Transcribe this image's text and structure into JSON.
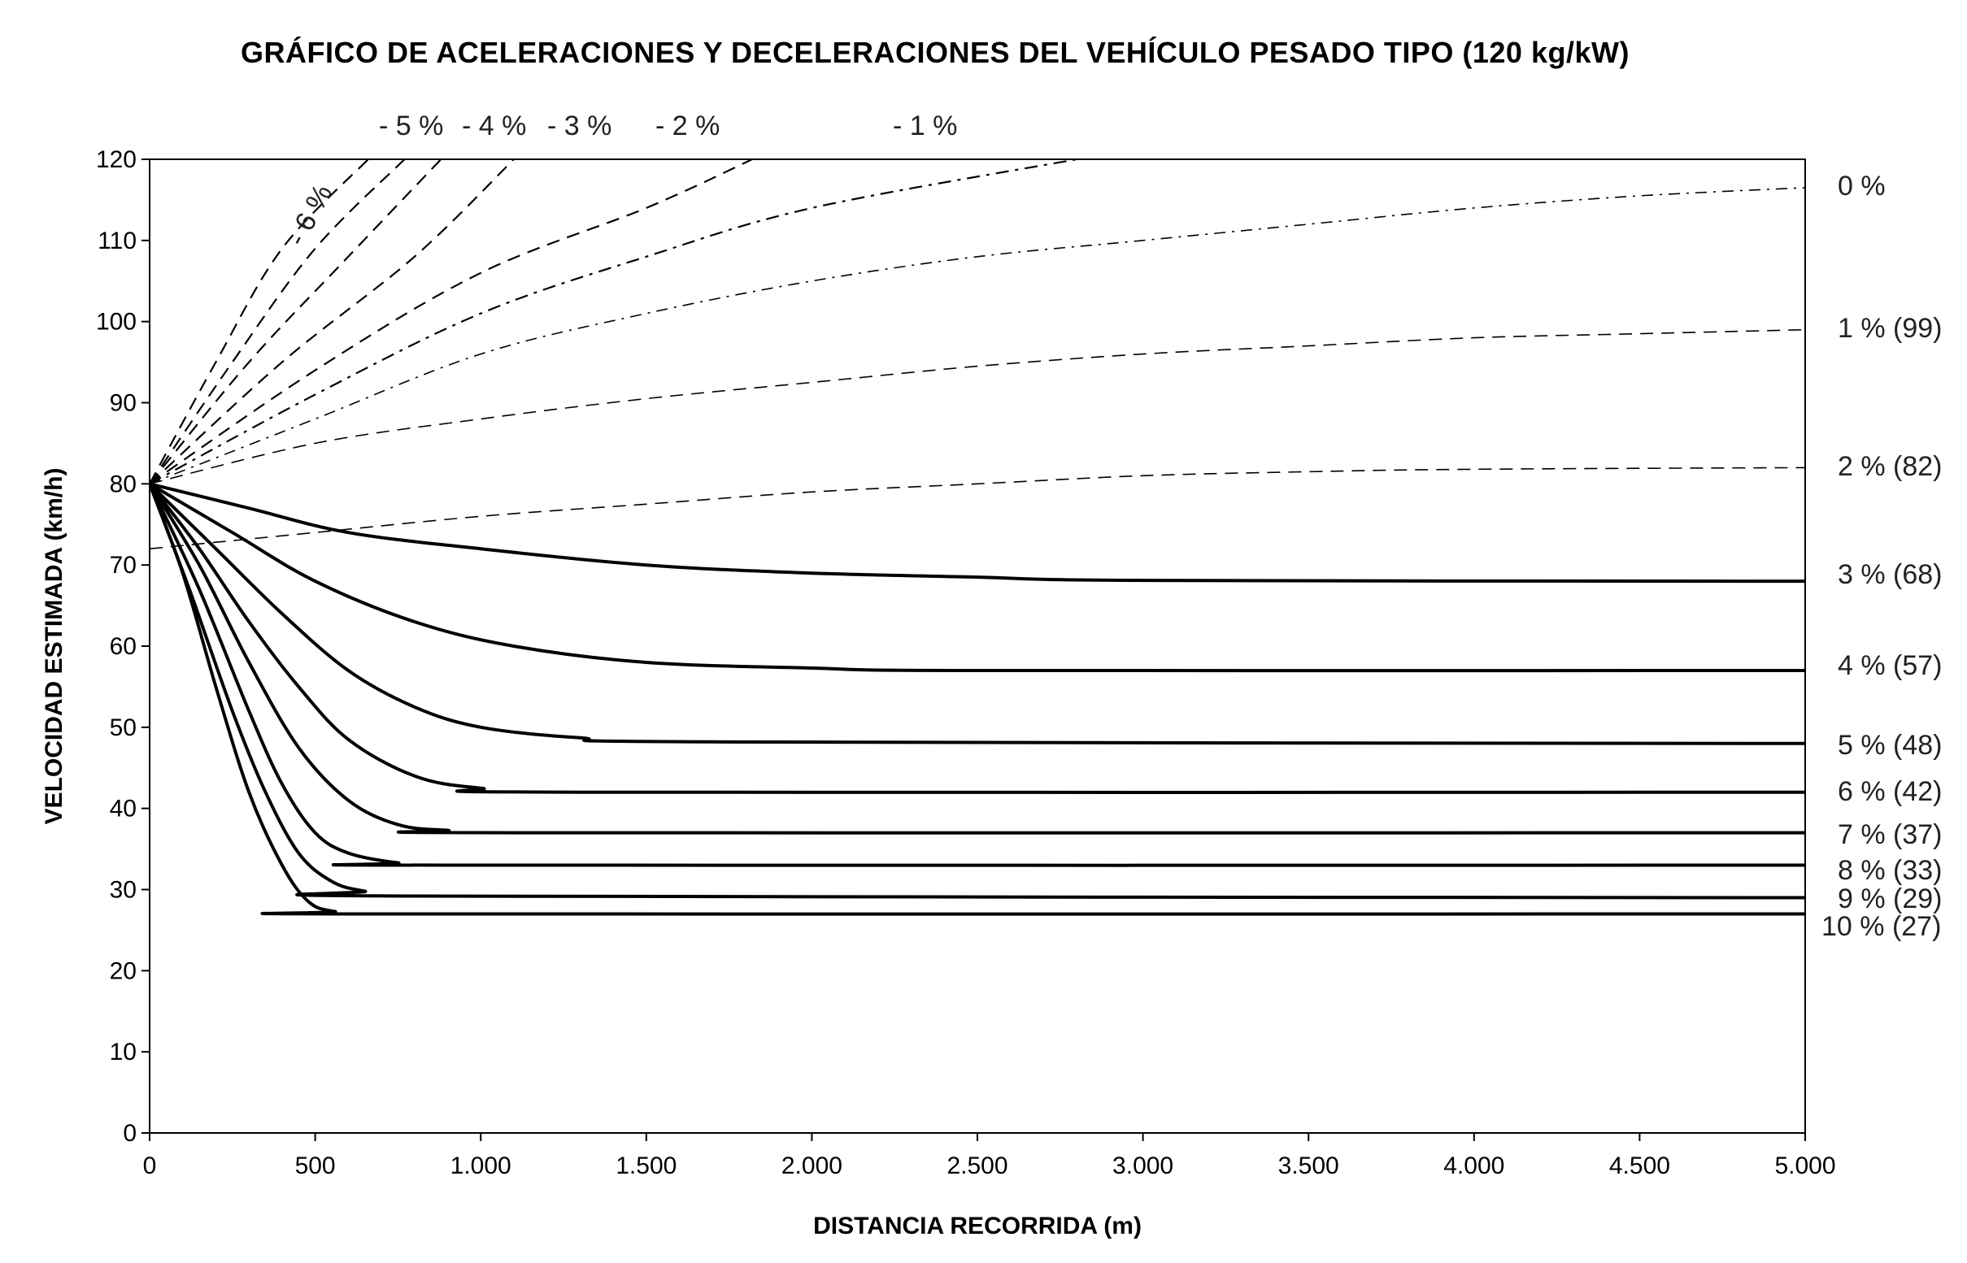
{
  "chart_data": {
    "type": "line",
    "title": "GRÁFICO DE ACELERACIONES Y DECELERACIONES DEL VEHÍCULO PESADO TIPO (120 kg/kW)",
    "xlabel": "DISTANCIA RECORRIDA (m)",
    "ylabel": "VELOCIDAD ESTIMADA (km/h)",
    "xlim": [
      0,
      5000
    ],
    "ylim": [
      0,
      120
    ],
    "x_ticks": [
      {
        "value": 0,
        "label": "0"
      },
      {
        "value": 500,
        "label": "500"
      },
      {
        "value": 1000,
        "label": "1.000"
      },
      {
        "value": 1500,
        "label": "1.500"
      },
      {
        "value": 2000,
        "label": "2.000"
      },
      {
        "value": 2500,
        "label": "2.500"
      },
      {
        "value": 3000,
        "label": "3.000"
      },
      {
        "value": 3500,
        "label": "3.500"
      },
      {
        "value": 4000,
        "label": "4.000"
      },
      {
        "value": 4500,
        "label": "4.500"
      },
      {
        "value": 5000,
        "label": "5.000"
      }
    ],
    "y_ticks": [
      {
        "value": 0,
        "label": "0"
      },
      {
        "value": 10,
        "label": "10"
      },
      {
        "value": 20,
        "label": "20"
      },
      {
        "value": 30,
        "label": "30"
      },
      {
        "value": 40,
        "label": "40"
      },
      {
        "value": 50,
        "label": "50"
      },
      {
        "value": 60,
        "label": "60"
      },
      {
        "value": 70,
        "label": "70"
      },
      {
        "value": 80,
        "label": "80"
      },
      {
        "value": 90,
        "label": "90"
      },
      {
        "value": 100,
        "label": "100"
      },
      {
        "value": 110,
        "label": "110"
      },
      {
        "value": 120,
        "label": "120"
      }
    ],
    "grid": false,
    "series": [
      {
        "name": "- 6 %",
        "kind": "acceleration",
        "points": [
          [
            0,
            80
          ],
          [
            200,
            95
          ],
          [
            400,
            109
          ],
          [
            660,
            120
          ]
        ]
      },
      {
        "name": "- 5 %",
        "kind": "acceleration",
        "points": [
          [
            0,
            80
          ],
          [
            250,
            95
          ],
          [
            500,
            109
          ],
          [
            770,
            120
          ]
        ]
      },
      {
        "name": "- 4 %",
        "kind": "acceleration",
        "points": [
          [
            0,
            80
          ],
          [
            300,
            95
          ],
          [
            600,
            108
          ],
          [
            880,
            120
          ]
        ]
      },
      {
        "name": "- 3 %",
        "kind": "acceleration",
        "points": [
          [
            0,
            80
          ],
          [
            400,
            95
          ],
          [
            800,
            108
          ],
          [
            1100,
            120
          ]
        ]
      },
      {
        "name": "- 2 %",
        "kind": "acceleration",
        "points": [
          [
            0,
            80
          ],
          [
            500,
            94
          ],
          [
            1000,
            106
          ],
          [
            1500,
            114
          ],
          [
            1820,
            120
          ]
        ]
      },
      {
        "name": "- 1 %",
        "kind": "acceleration",
        "points": [
          [
            0,
            80
          ],
          [
            500,
            91
          ],
          [
            1000,
            101
          ],
          [
            1500,
            108
          ],
          [
            2000,
            114
          ],
          [
            2800,
            120
          ]
        ]
      },
      {
        "name": "0 %",
        "kind": "acceleration",
        "points": [
          [
            0,
            80
          ],
          [
            500,
            88
          ],
          [
            1000,
            96
          ],
          [
            1500,
            101
          ],
          [
            2000,
            105
          ],
          [
            2500,
            108
          ],
          [
            3000,
            110
          ],
          [
            3500,
            112
          ],
          [
            4000,
            114
          ],
          [
            4500,
            115.5
          ],
          [
            5000,
            116.5
          ]
        ]
      },
      {
        "name": "1 % (99)",
        "kind": "acceleration",
        "points": [
          [
            0,
            80
          ],
          [
            500,
            85
          ],
          [
            1000,
            88
          ],
          [
            1500,
            90.5
          ],
          [
            2000,
            92.5
          ],
          [
            2500,
            94.5
          ],
          [
            3000,
            96
          ],
          [
            3500,
            97
          ],
          [
            4000,
            98
          ],
          [
            4500,
            98.5
          ],
          [
            5000,
            99
          ]
        ]
      },
      {
        "name": "2 % (82)",
        "kind": "acceleration",
        "points": [
          [
            0,
            72
          ],
          [
            500,
            74
          ],
          [
            1000,
            76
          ],
          [
            1500,
            77.5
          ],
          [
            2000,
            79
          ],
          [
            2500,
            80
          ],
          [
            3000,
            81
          ],
          [
            3500,
            81.5
          ],
          [
            4000,
            81.8
          ],
          [
            5000,
            82
          ]
        ]
      },
      {
        "name": "3 % (68)",
        "kind": "deceleration",
        "points": [
          [
            0,
            80
          ],
          [
            300,
            77
          ],
          [
            600,
            74
          ],
          [
            1000,
            72
          ],
          [
            1500,
            70
          ],
          [
            2000,
            69
          ],
          [
            2500,
            68.5
          ],
          [
            3000,
            68.1
          ],
          [
            5000,
            68
          ]
        ]
      },
      {
        "name": "4 % (57)",
        "kind": "deceleration",
        "points": [
          [
            0,
            80
          ],
          [
            250,
            74
          ],
          [
            500,
            68
          ],
          [
            800,
            63
          ],
          [
            1100,
            60
          ],
          [
            1500,
            58
          ],
          [
            2000,
            57.3
          ],
          [
            2500,
            57
          ],
          [
            5000,
            57
          ]
        ]
      },
      {
        "name": "5 % (48)",
        "kind": "deceleration",
        "points": [
          [
            0,
            80
          ],
          [
            200,
            72
          ],
          [
            400,
            64
          ],
          [
            600,
            57
          ],
          [
            800,
            52.5
          ],
          [
            1000,
            50
          ],
          [
            1300,
            48.7
          ],
          [
            1700,
            48.2
          ],
          [
            5000,
            48
          ]
        ]
      },
      {
        "name": "6 % (42)",
        "kind": "deceleration",
        "points": [
          [
            0,
            80
          ],
          [
            150,
            72
          ],
          [
            300,
            63
          ],
          [
            450,
            55
          ],
          [
            600,
            48.5
          ],
          [
            800,
            44
          ],
          [
            1000,
            42.5
          ],
          [
            1300,
            42
          ],
          [
            5000,
            42
          ]
        ]
      },
      {
        "name": "7 % (37)",
        "kind": "deceleration",
        "points": [
          [
            0,
            80
          ],
          [
            150,
            70
          ],
          [
            300,
            58
          ],
          [
            450,
            47.5
          ],
          [
            600,
            41
          ],
          [
            750,
            38
          ],
          [
            900,
            37.3
          ],
          [
            1100,
            37
          ],
          [
            5000,
            37
          ]
        ]
      },
      {
        "name": "8 % (33)",
        "kind": "deceleration",
        "points": [
          [
            0,
            80
          ],
          [
            150,
            67
          ],
          [
            300,
            52
          ],
          [
            400,
            43
          ],
          [
            500,
            37
          ],
          [
            600,
            34.5
          ],
          [
            750,
            33.3
          ],
          [
            900,
            33
          ],
          [
            5000,
            33
          ]
        ]
      },
      {
        "name": "9 % (29)",
        "kind": "deceleration",
        "points": [
          [
            0,
            80
          ],
          [
            120,
            67
          ],
          [
            250,
            52
          ],
          [
            350,
            42
          ],
          [
            450,
            34.5
          ],
          [
            550,
            31
          ],
          [
            650,
            29.8
          ],
          [
            800,
            29.2
          ],
          [
            5000,
            29
          ]
        ]
      },
      {
        "name": "10 % (27)",
        "kind": "deceleration",
        "points": [
          [
            0,
            80
          ],
          [
            100,
            69
          ],
          [
            200,
            55
          ],
          [
            300,
            42
          ],
          [
            400,
            33
          ],
          [
            480,
            28.5
          ],
          [
            560,
            27.3
          ],
          [
            700,
            27
          ],
          [
            5000,
            27
          ]
        ]
      }
    ]
  },
  "top_labels": {
    "minus_5": "- 5 %",
    "minus_4": "- 4 %",
    "minus_3": "- 3 %",
    "minus_2": "- 2 %",
    "minus_1": "- 1 %",
    "minus_6": "- 6 %"
  },
  "right_labels": {
    "zero": "0 %",
    "one": "1 % (99)",
    "two": "2 % (82)",
    "three": "3 % (68)",
    "four": "4 % (57)",
    "five": "5 % (48)",
    "six": "6 % (42)",
    "seven": "7 % (37)",
    "eight": "8 % (33)",
    "nine": "9 % (29)",
    "ten": "10 % (27)"
  }
}
